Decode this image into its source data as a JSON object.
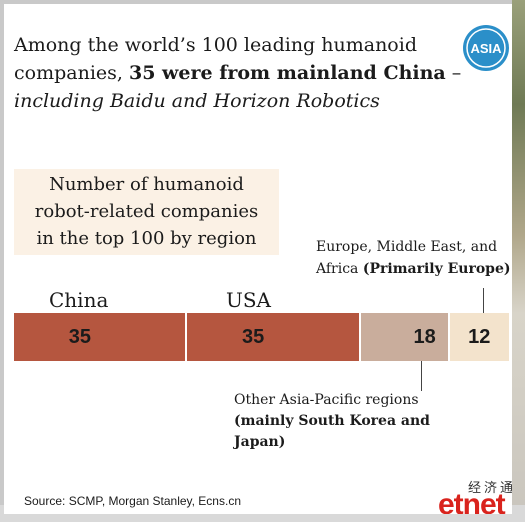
{
  "headline": {
    "part1": "Among the world’s 100 leading humanoid companies, ",
    "part2_bold": "35 were from mainland China",
    "part3": " – ",
    "part4_italic": "including Baidu and Horizon Robotics"
  },
  "logo": {
    "text": "ASIA",
    "color": "#2b8fc9"
  },
  "chart_data": {
    "type": "bar",
    "orientation": "horizontal-stacked",
    "title_lines": [
      "Number of humanoid",
      "robot-related companies",
      "in the top 100 by region"
    ],
    "categories": [
      "China",
      "USA",
      "Other Asia-Pacific regions (mainly South Korea and Japan)",
      "Europe, Middle East, and Africa (Primarily Europe)"
    ],
    "values": [
      35,
      35,
      18,
      12
    ],
    "colors": [
      "#b5563f",
      "#b5563f",
      "#c9ad9c",
      "#f3e3cc"
    ],
    "value_colors": [
      "#1b1b1b",
      "#1b1b1b",
      "#1b1b1b",
      "#1b1b1b"
    ],
    "total": 100,
    "labels": {
      "china": "China",
      "usa": "USA",
      "emea_plain": "Europe, Middle East, and",
      "emea_plain2": "Africa ",
      "emea_bold": "(Primarily Europe)",
      "apac_plain": "Other Asia-Pacific regions",
      "apac_bold1": "(mainly South Korea and",
      "apac_bold2": "Japan)"
    }
  },
  "source": "Source: SCMP, Morgan Stanley, Ecns.cn",
  "watermark": {
    "cn": "经济通",
    "brand": "etnet"
  }
}
